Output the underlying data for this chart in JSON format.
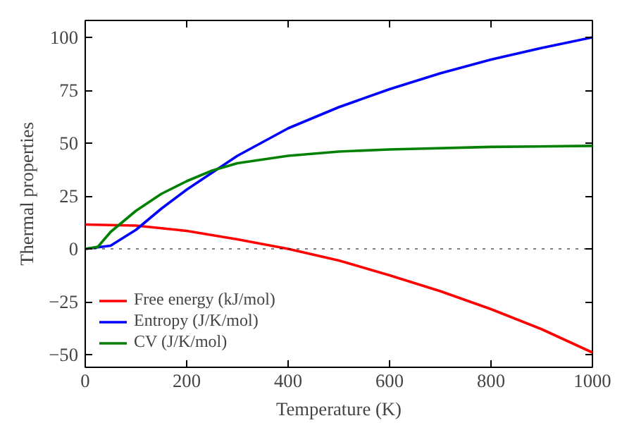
{
  "chart_data": {
    "type": "line",
    "xlabel": "Temperature (K)",
    "ylabel": "Thermal properties",
    "xlim": [
      0,
      1000
    ],
    "ylim": [
      -56,
      108
    ],
    "xticks": [
      0,
      200,
      400,
      600,
      800,
      1000
    ],
    "yticks": [
      -50,
      -25,
      0,
      25,
      50,
      75,
      100
    ],
    "grid": false,
    "legend": "bottom left",
    "line_style": "solid",
    "ref_lines": [
      {
        "axis": "y",
        "value": 0,
        "color": "#000000",
        "line_style": "dotted"
      }
    ],
    "series": [
      {
        "name": "Free energy (kJ/mol)",
        "color": "#ff0000",
        "x": [
          0,
          100,
          200,
          300,
          400,
          500,
          600,
          700,
          800,
          900,
          1000
        ],
        "values": [
          11.5,
          11,
          8.5,
          4.5,
          0,
          -5.5,
          -12.5,
          -20,
          -28.5,
          -38,
          -49
        ]
      },
      {
        "name": "Entropy (J/K/mol)",
        "color": "#0000ff",
        "x": [
          0,
          50,
          100,
          150,
          200,
          250,
          300,
          400,
          500,
          600,
          700,
          800,
          900,
          1000
        ],
        "values": [
          0,
          1.5,
          9,
          19,
          28,
          36,
          44,
          57,
          67,
          75.5,
          83,
          89.5,
          95,
          100
        ]
      },
      {
        "name": "CV (J/K/mol)",
        "color": "#008000",
        "x": [
          0,
          25,
          50,
          100,
          150,
          200,
          250,
          300,
          400,
          500,
          600,
          800,
          1000
        ],
        "values": [
          0,
          1,
          8,
          18,
          26,
          32,
          37,
          40.5,
          44,
          46,
          47,
          48.2,
          48.7
        ]
      }
    ]
  }
}
